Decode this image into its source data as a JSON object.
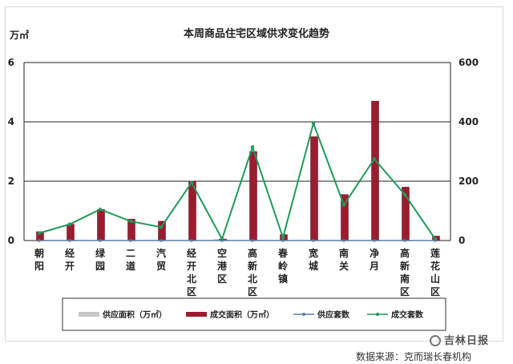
{
  "chart_data": {
    "type": "bar+line",
    "title": "本周商品住宅区域供求变化趋势",
    "y_left_unit": "万㎡",
    "y_left_lim": [
      0,
      6
    ],
    "y_left_ticks": [
      0,
      2,
      4,
      6
    ],
    "y_right_lim": [
      0,
      600
    ],
    "y_right_ticks": [
      0,
      200,
      400,
      600
    ],
    "categories": [
      "朝阳",
      "经开",
      "绿园",
      "二道",
      "汽贸",
      "经开北区",
      "空港区",
      "高新北区",
      "春岭镇",
      "宽城",
      "南关",
      "净月",
      "高新南区",
      "莲花山区域"
    ],
    "series": [
      {
        "name": "供应面积（万㎡）",
        "type": "bar",
        "axis": "left",
        "color": "#c8c8c8",
        "values": [
          0,
          0,
          0,
          0,
          0,
          0,
          0.05,
          0,
          0,
          0,
          0,
          0,
          0,
          0
        ]
      },
      {
        "name": "成交面积（万㎡）",
        "type": "bar",
        "axis": "left",
        "color": "#9b1c2e",
        "values": [
          0.3,
          0.55,
          1.05,
          0.72,
          0.65,
          2.0,
          0.05,
          3.0,
          0.2,
          3.5,
          1.55,
          4.7,
          1.8,
          0.15
        ]
      },
      {
        "name": "供应套数",
        "type": "line",
        "axis": "right",
        "color": "#5b7fa6",
        "values": [
          0,
          0,
          0,
          0,
          0,
          0,
          0,
          0,
          0,
          0,
          0,
          0,
          0,
          0
        ]
      },
      {
        "name": "成交套数",
        "type": "line",
        "axis": "right",
        "color": "#1f9a5a",
        "values": [
          25,
          55,
          105,
          65,
          45,
          195,
          5,
          315,
          10,
          395,
          120,
          275,
          155,
          5
        ]
      }
    ],
    "legend_position": "bottom",
    "gridlines": true
  },
  "source_text": "数据来源：克而瑞长春机构",
  "watermark_text": "吉林日报"
}
